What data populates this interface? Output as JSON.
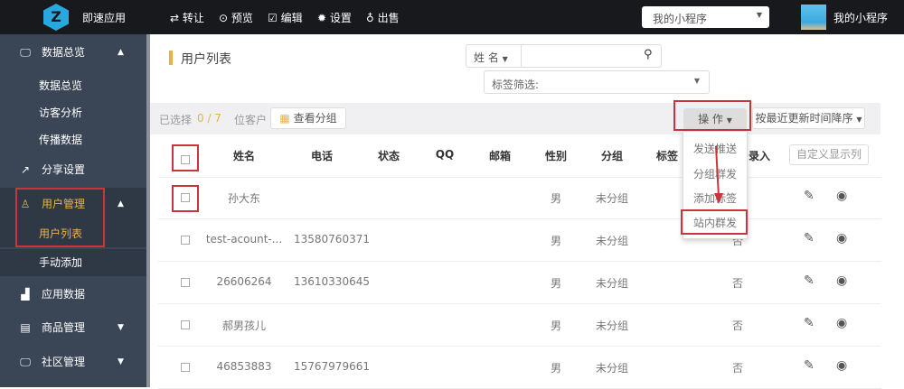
{
  "topbar": {
    "brand": "即速应用",
    "nav": [
      {
        "icon": "swap-icon",
        "glyph": "⇄",
        "label": "转让"
      },
      {
        "icon": "play-circle-icon",
        "glyph": "⊙",
        "label": "预览"
      },
      {
        "icon": "edit-icon",
        "glyph": "☑",
        "label": "编辑"
      },
      {
        "icon": "gear-icon",
        "glyph": "✹",
        "label": "设置"
      },
      {
        "icon": "money-bag-icon",
        "glyph": "♁",
        "label": "出售"
      }
    ],
    "app_select": "我的小程序",
    "user_name": "我的小程序"
  },
  "sidebar": {
    "items": [
      {
        "label": "数据总览",
        "icon": "monitor-icon"
      },
      {
        "label": "分享设置",
        "icon": "share-icon"
      },
      {
        "label": "用户管理",
        "icon": "user-icon"
      },
      {
        "label": "应用数据",
        "icon": "bar-chart-icon"
      },
      {
        "label": "商品管理",
        "icon": "store-icon"
      },
      {
        "label": "社区管理",
        "icon": "monitor-icon"
      }
    ],
    "sub_overview": [
      "数据总览",
      "访客分析",
      "传播数据"
    ],
    "sub_users": [
      "用户列表",
      "手动添加"
    ]
  },
  "page": {
    "title": "用户列表",
    "search_field": "姓 名",
    "tag_filter": "标签筛选:",
    "selected_prefix": "已选择",
    "selected_count": "0 / 7",
    "selected_suffix": "位客户",
    "view_groups": "查看分组",
    "operate": "操 作",
    "sort": "按最近更新时间降序",
    "custom_columns": "自定义显示列"
  },
  "menu": [
    "发送推送",
    "分组群发",
    "添加标签",
    "站内群发"
  ],
  "table": {
    "headers": [
      "姓名",
      "电话",
      "状态",
      "QQ",
      "邮箱",
      "性别",
      "分组",
      "标签",
      "录入"
    ],
    "rows": [
      {
        "name": "孙大东",
        "phone": "",
        "gender": "男",
        "group": "未分组",
        "entry": ""
      },
      {
        "name": "test-acount-...",
        "phone": "13580760371",
        "gender": "男",
        "group": "未分组",
        "entry": "否"
      },
      {
        "name": "26606264",
        "phone": "13610330645",
        "gender": "男",
        "group": "未分组",
        "entry": "否"
      },
      {
        "name": "郝男孩儿",
        "phone": "",
        "gender": "男",
        "group": "未分组",
        "entry": "否"
      },
      {
        "name": "46853883",
        "phone": "15767979661",
        "gender": "男",
        "group": "未分组",
        "entry": "否"
      }
    ]
  },
  "colors": {
    "accent": "#e8b24a",
    "highlight": "#c9353a",
    "sidebar": "#3a4555"
  }
}
